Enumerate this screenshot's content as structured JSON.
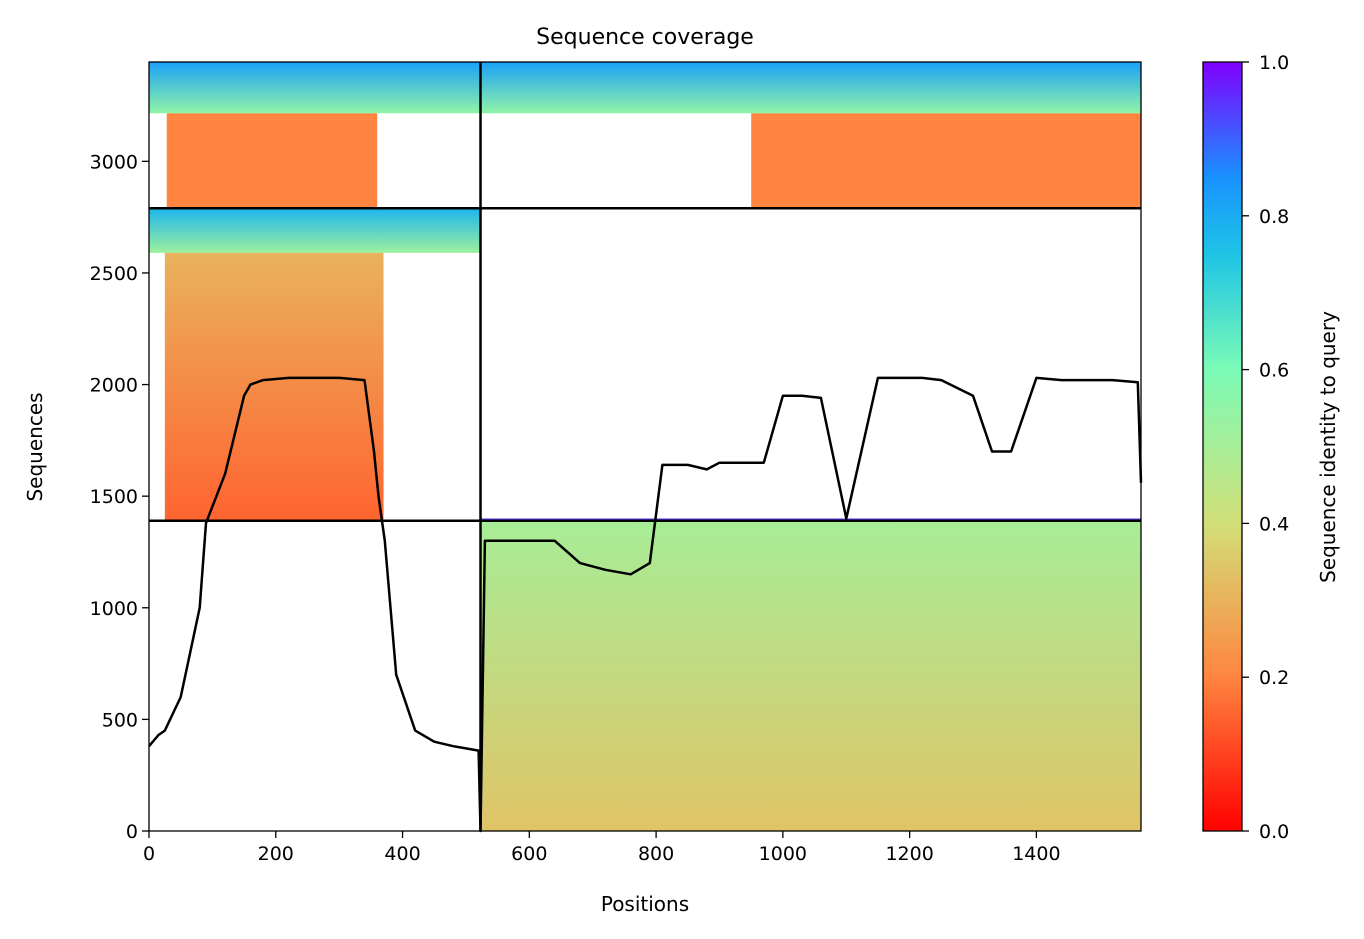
{
  "chart_data": {
    "type": "heatmap",
    "title": "Sequence coverage",
    "xlabel": "Positions",
    "ylabel": "Sequences",
    "xlim": [
      0,
      1565
    ],
    "ylim": [
      0,
      3445
    ],
    "x_ticks": [
      0,
      200,
      400,
      600,
      800,
      1000,
      1200,
      1400
    ],
    "y_ticks": [
      0,
      500,
      1000,
      1500,
      2000,
      2500,
      3000
    ],
    "grid": false,
    "colormap": "rainbow_r",
    "colorbar": {
      "label": "Sequence identity to query",
      "range": [
        0,
        1
      ],
      "ticks": [
        0.0,
        0.2,
        0.4,
        0.6,
        0.8,
        1.0
      ],
      "tick_labels": [
        "0.0",
        "0.2",
        "0.4",
        "0.6",
        "0.8",
        "1.0"
      ]
    },
    "boundaries": {
      "vertical_x": [
        523
      ],
      "horizontal_y": [
        1390,
        2790
      ]
    },
    "coverage_blocks": [
      {
        "x": [
          0,
          523
        ],
        "y": [
          3215,
          3445
        ],
        "identity_low": 0.55,
        "identity_high": 0.82
      },
      {
        "x": [
          523,
          1565
        ],
        "y": [
          3215,
          3445
        ],
        "identity_low": 0.55,
        "identity_high": 0.82
      },
      {
        "x": [
          28,
          360
        ],
        "y": [
          2790,
          3215
        ],
        "identity_low": 0.2,
        "identity_high": 0.2
      },
      {
        "x": [
          950,
          1565
        ],
        "y": [
          2790,
          3215
        ],
        "identity_low": 0.2,
        "identity_high": 0.2
      },
      {
        "x": [
          0,
          523
        ],
        "y": [
          2590,
          2790
        ],
        "identity_low": 0.52,
        "identity_high": 0.78
      },
      {
        "x": [
          25,
          370
        ],
        "y": [
          1390,
          2590
        ],
        "identity_low": 0.15,
        "identity_high": 0.3
      },
      {
        "x": [
          523,
          1565
        ],
        "y": [
          1390,
          1400
        ],
        "identity_low": 0.9,
        "identity_high": 0.95
      },
      {
        "x": [
          523,
          1565
        ],
        "y": [
          0,
          1390
        ],
        "identity_low": 0.34,
        "identity_high": 0.5
      }
    ],
    "coverage_line": {
      "x": [
        0,
        15,
        25,
        50,
        80,
        90,
        120,
        150,
        160,
        180,
        220,
        260,
        300,
        340,
        355,
        362,
        372,
        390,
        420,
        450,
        480,
        500,
        520,
        523,
        530,
        560,
        600,
        640,
        680,
        720,
        760,
        790,
        810,
        850,
        880,
        900,
        940,
        970,
        1000,
        1030,
        1060,
        1100,
        1150,
        1190,
        1220,
        1250,
        1300,
        1330,
        1360,
        1400,
        1440,
        1480,
        1520,
        1560,
        1565
      ],
      "y": [
        380,
        430,
        450,
        600,
        1000,
        1380,
        1600,
        1950,
        2000,
        2020,
        2030,
        2030,
        2030,
        2020,
        1700,
        1500,
        1300,
        700,
        450,
        400,
        380,
        370,
        360,
        0,
        1300,
        1300,
        1300,
        1300,
        1200,
        1170,
        1150,
        1200,
        1640,
        1640,
        1620,
        1650,
        1650,
        1650,
        1950,
        1950,
        1940,
        1400,
        2030,
        2030,
        2030,
        2020,
        1950,
        1700,
        1700,
        2030,
        2020,
        2020,
        2020,
        2010,
        1560
      ]
    }
  }
}
